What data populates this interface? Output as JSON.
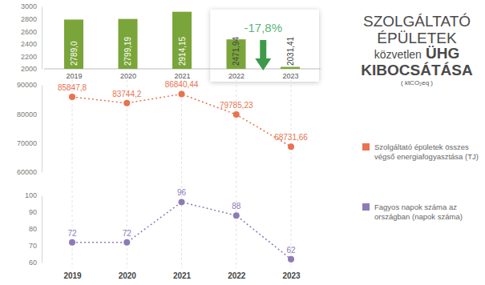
{
  "chart_data": [
    {
      "type": "bar",
      "title": "SZOLGÁLTATÓ ÉPÜLETEK közvetlen ÜHG KIBOCSÁTÁSA",
      "subtitle": "( ktCO₂eq )",
      "categories": [
        "2019",
        "2020",
        "2021",
        "2022",
        "2023"
      ],
      "values": [
        2789.0,
        2799.19,
        2914.15,
        2471.94,
        2031.41
      ],
      "value_labels": [
        "2789,0",
        "2799,19",
        "2914,15",
        "2471,94",
        "2031,41"
      ],
      "data_labels": true,
      "color": "#7aa53a",
      "ylim": [
        2000,
        3000
      ],
      "yticks": [
        2000,
        2200,
        2400,
        2600,
        2800,
        3000
      ],
      "annotations": [
        "-17,8%"
      ]
    },
    {
      "type": "line",
      "categories": [
        "2019",
        "2020",
        "2021",
        "2022",
        "2023"
      ],
      "series": [
        {
          "name": "Szolgáltató épületek összes végső energiafogyasztása (TJ)",
          "color": "#e8734f",
          "values": [
            85847.8,
            83744.2,
            86840.44,
            79785.23,
            68731.66
          ],
          "value_labels": [
            "85847,8",
            "83744,2",
            "86840,44",
            "79785,23",
            "68731,66"
          ],
          "marker": "circle",
          "line_style": "dotted"
        },
        {
          "name": "Fagyos napok száma az országban (napok száma)",
          "color": "#8c7bb8",
          "values": [
            72,
            72,
            96,
            88,
            62
          ],
          "axis": "y2",
          "marker": "circle",
          "line_style": "dotted"
        }
      ],
      "ylim": [
        60000,
        90000
      ],
      "yticks": [
        60000,
        70000,
        80000,
        90000
      ],
      "y2lim": [
        60,
        100
      ],
      "y2ticks": [
        60,
        70,
        80,
        90,
        100
      ],
      "data_labels": true,
      "grid": true,
      "legend": "right"
    }
  ]
}
